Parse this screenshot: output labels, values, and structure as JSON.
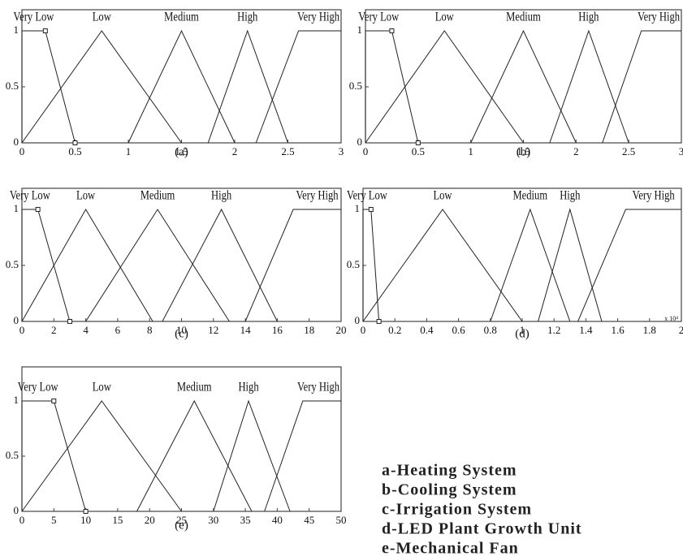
{
  "chart_data": [
    {
      "type": "line",
      "caption": "(a)",
      "color": "#222",
      "xlim": [
        0,
        3
      ],
      "xticks": [
        0,
        0.5,
        1,
        1.5,
        2,
        2.5,
        3
      ],
      "ylim": [
        0,
        1
      ],
      "yticks": [
        0,
        0.5,
        1
      ],
      "series": [
        {
          "name": "Very Low",
          "x": [
            0,
            0,
            0.22,
            0.5
          ],
          "values": [
            0,
            1,
            1,
            0
          ]
        },
        {
          "name": "Low",
          "x": [
            0,
            0.75,
            1.5
          ],
          "values": [
            0,
            1,
            0
          ]
        },
        {
          "name": "Medium",
          "x": [
            1,
            1.5,
            2
          ],
          "values": [
            0,
            1,
            0
          ]
        },
        {
          "name": "High",
          "x": [
            1.75,
            2.12,
            2.5
          ],
          "values": [
            0,
            1,
            0
          ]
        },
        {
          "name": "Very High",
          "x": [
            2.2,
            2.6,
            3
          ],
          "values": [
            0,
            1,
            1
          ]
        }
      ]
    },
    {
      "type": "line",
      "caption": "(b)",
      "color": "#222",
      "xlim": [
        0,
        3
      ],
      "xticks": [
        0,
        0.5,
        1,
        1.5,
        2,
        2.5,
        3
      ],
      "ylim": [
        0,
        1
      ],
      "yticks": [
        0,
        0.5,
        1
      ],
      "series": [
        {
          "name": "Very Low",
          "x": [
            0,
            0,
            0.25,
            0.5
          ],
          "values": [
            0,
            1,
            1,
            0
          ]
        },
        {
          "name": "Low",
          "x": [
            0,
            0.75,
            1.5
          ],
          "values": [
            0,
            1,
            0
          ]
        },
        {
          "name": "Medium",
          "x": [
            1,
            1.5,
            2
          ],
          "values": [
            0,
            1,
            0
          ]
        },
        {
          "name": "High",
          "x": [
            1.75,
            2.12,
            2.5
          ],
          "values": [
            0,
            1,
            0
          ]
        },
        {
          "name": "Very High",
          "x": [
            2.25,
            2.62,
            3
          ],
          "values": [
            0,
            1,
            1
          ]
        }
      ]
    },
    {
      "type": "line",
      "caption": "(c)",
      "color": "#222",
      "xlim": [
        0,
        20
      ],
      "xticks": [
        0,
        2,
        4,
        6,
        8,
        10,
        12,
        14,
        16,
        18,
        20
      ],
      "ylim": [
        0,
        1
      ],
      "yticks": [
        0,
        0.5,
        1
      ],
      "series": [
        {
          "name": "Very Low",
          "x": [
            0,
            0,
            1,
            3
          ],
          "values": [
            0,
            1,
            1,
            0
          ]
        },
        {
          "name": "Low",
          "x": [
            0,
            4,
            8.2
          ],
          "values": [
            0,
            1,
            0
          ]
        },
        {
          "name": "Medium",
          "x": [
            4,
            8.5,
            13
          ],
          "values": [
            0,
            1,
            0
          ]
        },
        {
          "name": "High",
          "x": [
            8.8,
            12.5,
            16
          ],
          "values": [
            0,
            1,
            0
          ]
        },
        {
          "name": "Very High",
          "x": [
            14,
            17,
            20
          ],
          "values": [
            0,
            1,
            1
          ]
        }
      ]
    },
    {
      "type": "line",
      "caption": "(d)",
      "color": "#222",
      "x_multiplier": "x 10⁴",
      "xlim": [
        0,
        2
      ],
      "xticks": [
        0,
        0.2,
        0.4,
        0.6,
        0.8,
        1,
        1.2,
        1.4,
        1.6,
        1.8,
        2
      ],
      "ylim": [
        0,
        1
      ],
      "yticks": [
        0,
        0.5,
        1
      ],
      "series": [
        {
          "name": "Very Low",
          "x": [
            0,
            0,
            0.05,
            0.1
          ],
          "values": [
            0,
            1,
            1,
            0
          ]
        },
        {
          "name": "Low",
          "x": [
            0,
            0.5,
            1
          ],
          "values": [
            0,
            1,
            0
          ]
        },
        {
          "name": "Medium",
          "x": [
            0.8,
            1.05,
            1.3
          ],
          "values": [
            0,
            1,
            0
          ]
        },
        {
          "name": "High",
          "x": [
            1.1,
            1.3,
            1.5
          ],
          "values": [
            0,
            1,
            0
          ]
        },
        {
          "name": "Very High",
          "x": [
            1.35,
            1.65,
            2
          ],
          "values": [
            0,
            1,
            1
          ]
        }
      ]
    },
    {
      "type": "line",
      "caption": "(e)",
      "color": "#222",
      "xlim": [
        0,
        50
      ],
      "xticks": [
        0,
        5,
        10,
        15,
        20,
        25,
        30,
        35,
        40,
        45,
        50
      ],
      "ylim": [
        0,
        1
      ],
      "yticks": [
        0,
        0.5,
        1
      ],
      "series": [
        {
          "name": "Very Low",
          "x": [
            0,
            0,
            5,
            10
          ],
          "values": [
            0,
            1,
            1,
            0
          ]
        },
        {
          "name": "Low",
          "x": [
            0,
            12.5,
            25
          ],
          "values": [
            0,
            1,
            0
          ]
        },
        {
          "name": "Medium",
          "x": [
            18,
            27,
            36
          ],
          "values": [
            0,
            1,
            0
          ]
        },
        {
          "name": "High",
          "x": [
            30,
            35.5,
            42
          ],
          "values": [
            0,
            1,
            0
          ]
        },
        {
          "name": "Very High",
          "x": [
            38,
            44,
            50
          ],
          "values": [
            0,
            1,
            1
          ]
        }
      ]
    }
  ],
  "legend_text": [
    "a-Heating System",
    "b-Cooling System",
    "c-Irrigation System",
    "d-LED Plant Growth Unit",
    "e-Mechanical Fan"
  ]
}
